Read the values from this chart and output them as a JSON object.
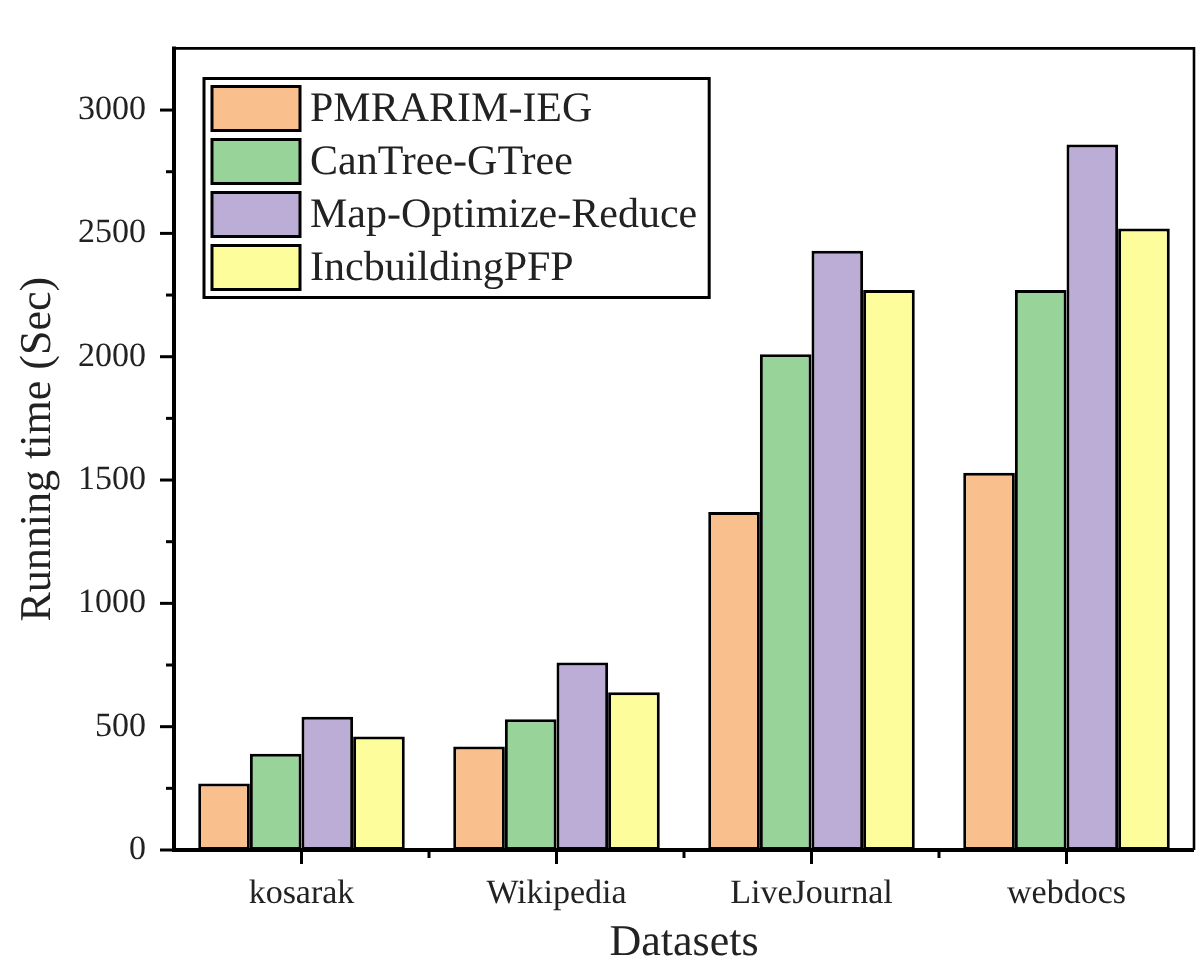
{
  "chart_data": {
    "type": "bar",
    "xlabel": "Datasets",
    "ylabel": "Running time (Sec)",
    "categories": [
      "kosarak",
      "Wikipedia",
      "LiveJournal",
      "webdocs"
    ],
    "series": [
      {
        "name": "PMRARIM-IEG",
        "color": "#f9c08e",
        "values": [
          270,
          420,
          1370,
          1530
        ]
      },
      {
        "name": "CanTree-GTree",
        "color": "#98d49a",
        "values": [
          390,
          530,
          2010,
          2270
        ]
      },
      {
        "name": "Map-Optimize-Reduce",
        "color": "#bcadd6",
        "values": [
          540,
          760,
          2430,
          2860
        ]
      },
      {
        "name": "IncbuildingPFP",
        "color": "#fefd9b",
        "values": [
          460,
          640,
          2270,
          2520
        ]
      }
    ],
    "ylim": [
      0,
      3250
    ],
    "yticks": [
      0,
      {
        "value": 250,
        "label": null
      },
      500,
      {
        "value": 750,
        "label": null
      },
      1000,
      {
        "value": 1250,
        "label": null
      },
      1500,
      {
        "value": 1750,
        "label": null
      },
      2000,
      {
        "value": 2250,
        "label": null
      },
      2500,
      {
        "value": 2750,
        "label": null
      },
      3000
    ],
    "legend": "top left"
  }
}
